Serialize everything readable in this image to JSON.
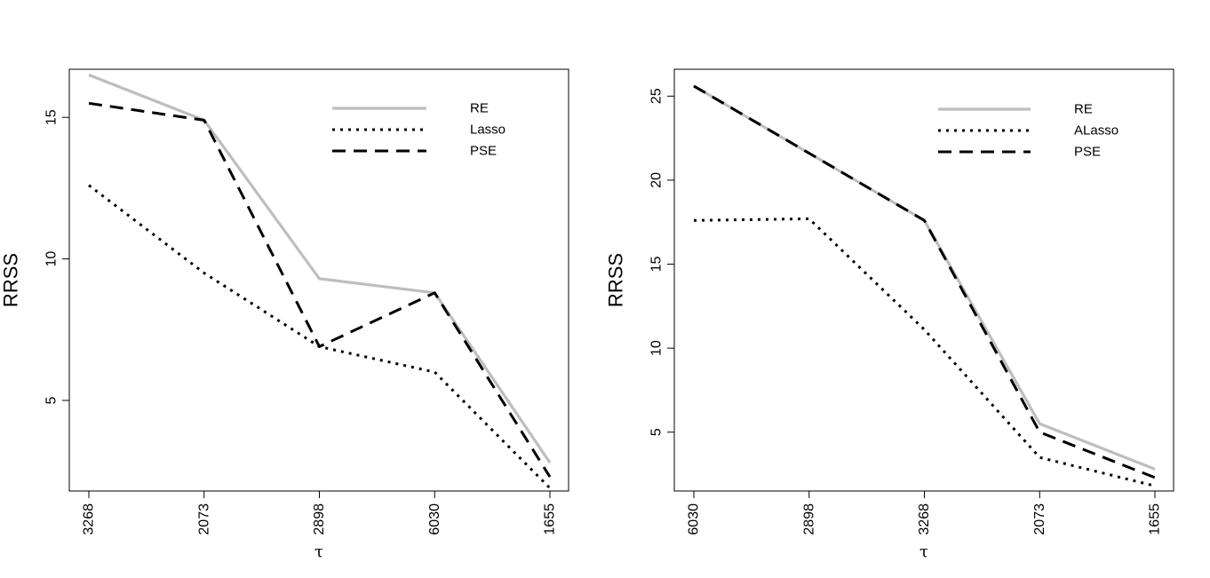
{
  "chart_data": [
    {
      "type": "line",
      "title": "",
      "xlabel": "τ",
      "ylabel": "RRSS",
      "categories": [
        "3268",
        "2073",
        "2898",
        "6030",
        "1655"
      ],
      "ylim": [
        1.8,
        16.7
      ],
      "yticks": [
        5,
        10,
        15
      ],
      "legend_position": "top-right",
      "series": [
        {
          "name": "RE",
          "style": "solid",
          "color": "#bebebe",
          "values": [
            16.5,
            14.9,
            9.3,
            8.8,
            2.8
          ]
        },
        {
          "name": "Lasso",
          "style": "dotted",
          "color": "#000000",
          "values": [
            12.6,
            9.5,
            6.9,
            6.0,
            1.9
          ]
        },
        {
          "name": "PSE",
          "style": "dashed",
          "color": "#000000",
          "values": [
            15.5,
            14.9,
            6.9,
            8.8,
            2.3
          ]
        }
      ]
    },
    {
      "type": "line",
      "title": "",
      "xlabel": "τ",
      "ylabel": "RRSS",
      "categories": [
        "6030",
        "2898",
        "3268",
        "2073",
        "1655"
      ],
      "ylim": [
        1.5,
        26.6
      ],
      "yticks": [
        5,
        10,
        15,
        20,
        25
      ],
      "legend_position": "top-right",
      "series": [
        {
          "name": "RE",
          "style": "solid",
          "color": "#bebebe",
          "values": [
            25.6,
            21.6,
            17.6,
            5.5,
            2.8
          ]
        },
        {
          "name": "ALasso",
          "style": "dotted",
          "color": "#000000",
          "values": [
            17.6,
            17.7,
            11.1,
            3.5,
            1.8
          ]
        },
        {
          "name": "PSE",
          "style": "dashed",
          "color": "#000000",
          "values": [
            25.6,
            21.6,
            17.6,
            5.0,
            2.3
          ]
        }
      ]
    }
  ]
}
